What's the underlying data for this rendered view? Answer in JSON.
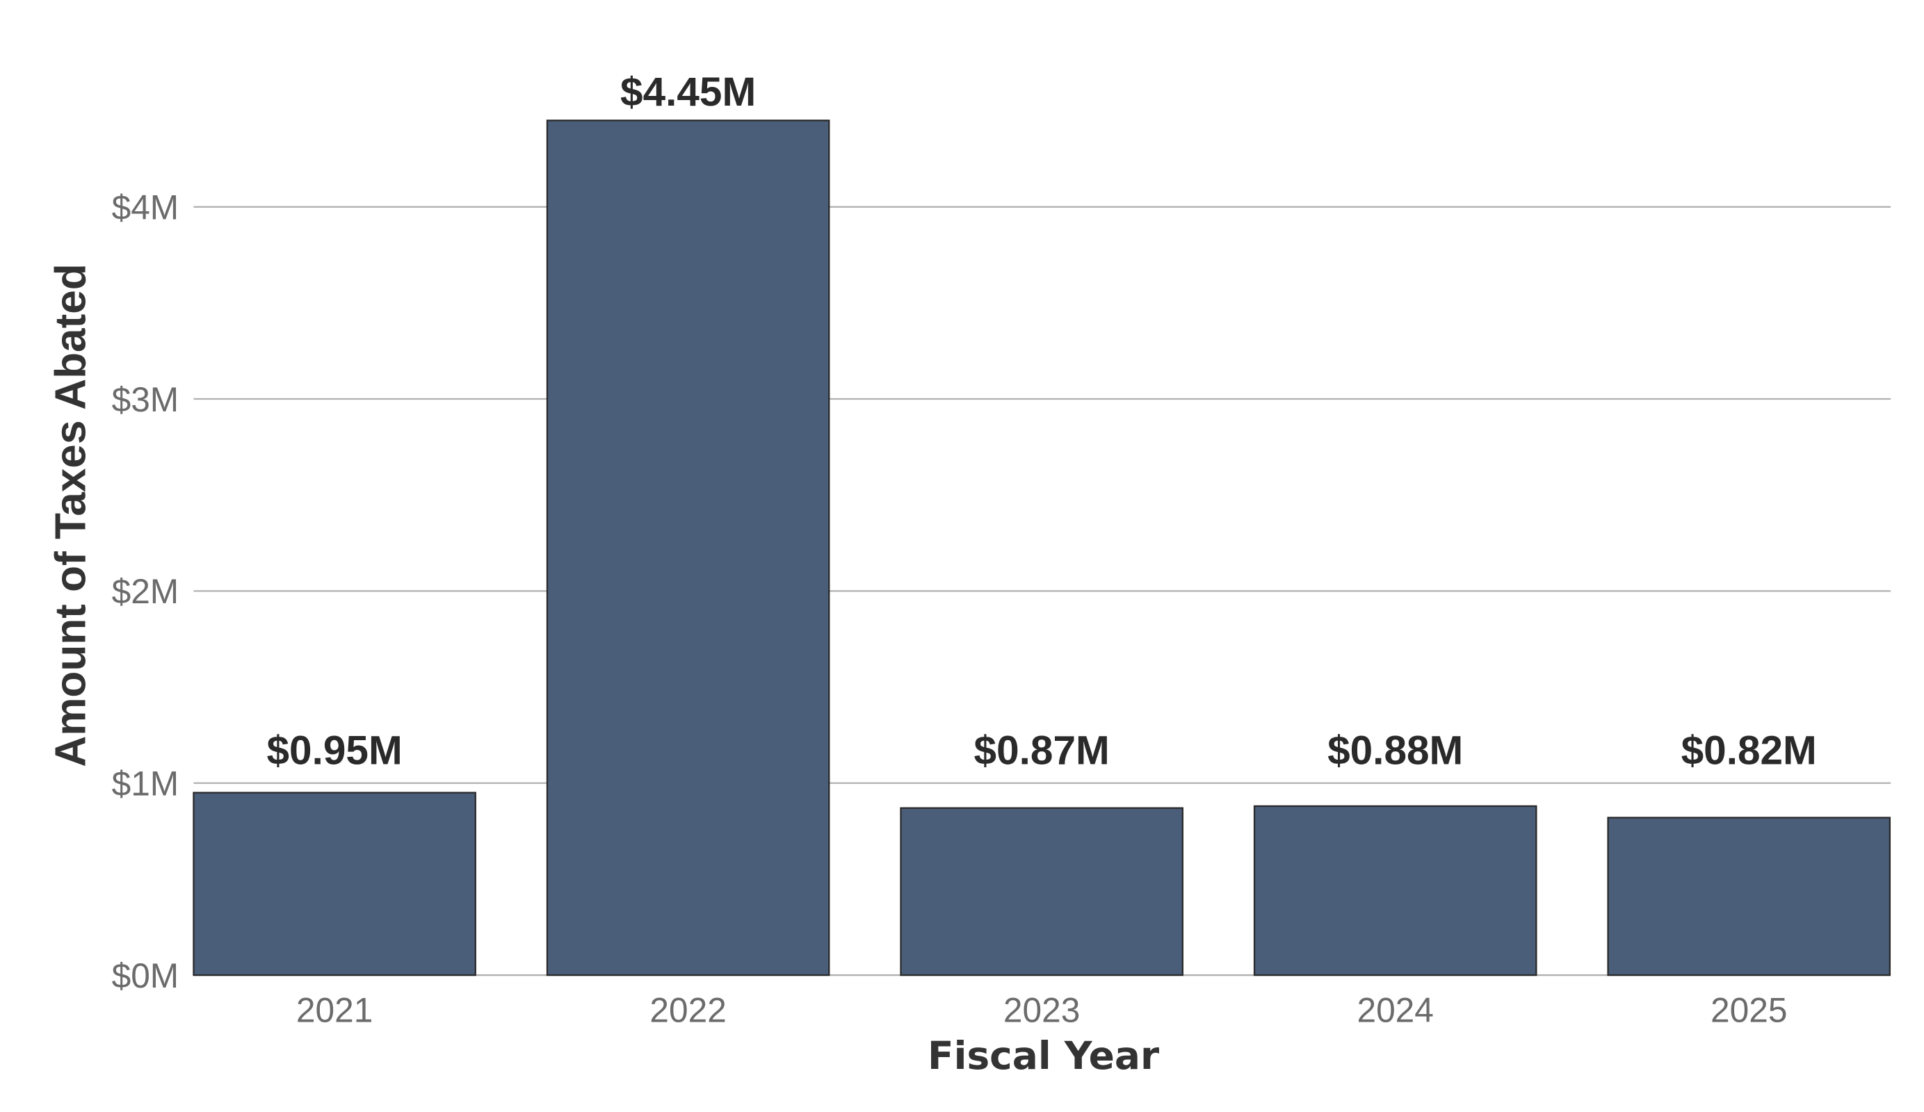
{
  "chart_data": {
    "type": "bar",
    "title": "",
    "xlabel": "Fiscal Year",
    "ylabel": "Amount of Taxes Abated",
    "categories": [
      "2021",
      "2022",
      "2023",
      "2024",
      "2025"
    ],
    "values": [
      0.95,
      4.45,
      0.87,
      0.88,
      0.82
    ],
    "value_labels": [
      "$0.95M",
      "$4.45M",
      "$0.87M",
      "$0.88M",
      "$0.82M"
    ],
    "units": "millions USD",
    "ylim": [
      0,
      4.6
    ],
    "yticks": [
      0,
      1,
      2,
      3,
      4
    ],
    "ytick_labels": [
      "$0M",
      "$1M",
      "$2M",
      "$3M",
      "$4M"
    ],
    "grid": true,
    "legend": "none",
    "colors": {
      "bar": "#4a5e7a",
      "bar_edge": "#2a2a2a",
      "grid": "#b0b0b0"
    }
  }
}
